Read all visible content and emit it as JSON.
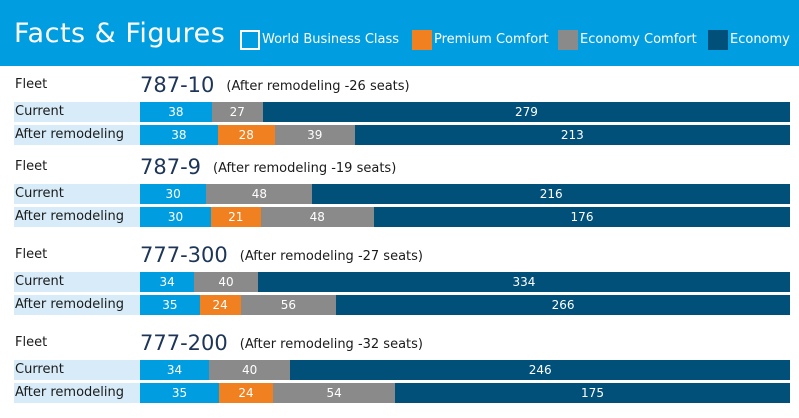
{
  "title": "Facts & Figures",
  "legend": [
    {
      "label": "World Business Class",
      "color": "#009ee0",
      "outline": true
    },
    {
      "label": "Premium Comfort",
      "color": "#f08020",
      "outline": false
    },
    {
      "label": "Economy Comfort",
      "color": "#8a8a8a",
      "outline": false
    },
    {
      "label": "Economy",
      "color": "#00507a",
      "outline": false
    }
  ],
  "colors": {
    "world_business": "#009ee0",
    "premium_comfort": "#f08020",
    "economy_comfort": "#8a8a8a",
    "economy": "#00507a",
    "header": "#009ee0",
    "row_label_bg": "#d7ecf8"
  },
  "chart_data": {
    "type": "bar",
    "stacked": true,
    "orientation": "horizontal",
    "series_names": [
      "World Business Class",
      "Premium Comfort",
      "Economy Comfort",
      "Economy"
    ],
    "groups": [
      {
        "fleet_label": "Fleet",
        "model": "787-10",
        "note": "(After remodeling -26 seats)",
        "rows": [
          {
            "label": "Current",
            "values": [
              38,
              0,
              27,
              279
            ]
          },
          {
            "label": "After remodeling",
            "values": [
              38,
              28,
              39,
              213
            ]
          }
        ]
      },
      {
        "fleet_label": "Fleet",
        "model": "787-9",
        "note": "(After remodeling -19 seats)",
        "rows": [
          {
            "label": "Current",
            "values": [
              30,
              0,
              48,
              216
            ]
          },
          {
            "label": "After remodeling",
            "values": [
              30,
              21,
              48,
              176
            ]
          }
        ]
      },
      {
        "fleet_label": "Fleet",
        "model": "777-300",
        "note": "(After remodeling -27 seats)",
        "rows": [
          {
            "label": "Current",
            "values": [
              34,
              0,
              40,
              334
            ]
          },
          {
            "label": "After remodeling",
            "values": [
              35,
              24,
              56,
              266
            ]
          }
        ]
      },
      {
        "fleet_label": "Fleet",
        "model": "777-200",
        "note": "(After remodeling -32 seats)",
        "rows": [
          {
            "label": "Current",
            "values": [
              34,
              0,
              40,
              246
            ]
          },
          {
            "label": "After remodeling",
            "values": [
              35,
              24,
              54,
              175
            ]
          }
        ]
      }
    ]
  }
}
